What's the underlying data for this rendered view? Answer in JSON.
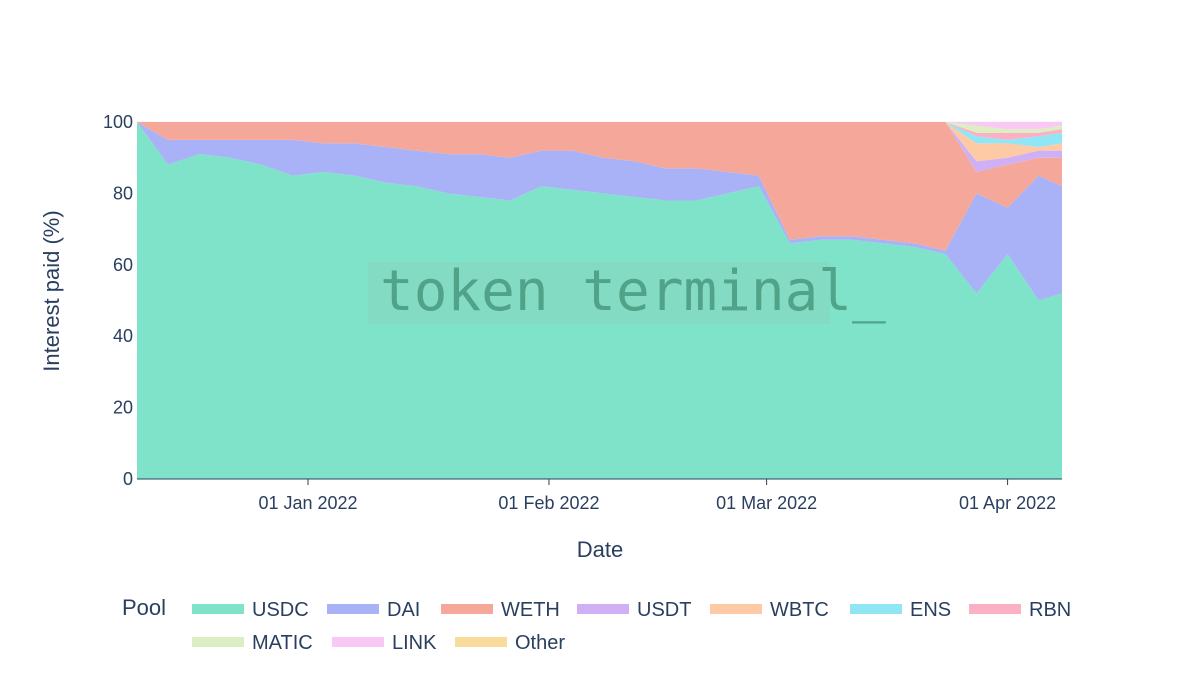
{
  "watermark": "token terminal_",
  "chart_data": {
    "type": "area",
    "stacked": true,
    "normalized_percent": true,
    "title": "",
    "xlabel": "Date",
    "ylabel": "Interest paid (%)",
    "ylim": [
      0,
      100
    ],
    "yticks": [
      0,
      20,
      40,
      60,
      80,
      100
    ],
    "xlim": [
      "2021-12-10",
      "2022-04-08"
    ],
    "xticks": [
      {
        "date": "2022-01-01",
        "label": "01 Jan 2022"
      },
      {
        "date": "2022-02-01",
        "label": "01 Feb 2022"
      },
      {
        "date": "2022-03-01",
        "label": "01 Mar 2022"
      },
      {
        "date": "2022-04-01",
        "label": "01 Apr 2022"
      }
    ],
    "grid": true,
    "legend_title": "Pool",
    "legend_position": "bottom",
    "colors": {
      "USDC": "#7ee3c8",
      "DAI": "#a9b2f7",
      "WETH": "#f5a899",
      "USDT": "#cfb0f5",
      "WBTC": "#fdcaa5",
      "ENS": "#90e6f5",
      "RBN": "#fbb0c4",
      "MATIC": "#dcefc2",
      "LINK": "#f9c8f4",
      "Other": "#f9dc9c"
    },
    "x": [
      "2021-12-10",
      "2021-12-14",
      "2021-12-18",
      "2021-12-22",
      "2021-12-26",
      "2021-12-30",
      "2022-01-03",
      "2022-01-07",
      "2022-01-11",
      "2022-01-15",
      "2022-01-19",
      "2022-01-23",
      "2022-01-27",
      "2022-01-31",
      "2022-02-04",
      "2022-02-08",
      "2022-02-12",
      "2022-02-16",
      "2022-02-20",
      "2022-02-24",
      "2022-02-28",
      "2022-03-04",
      "2022-03-08",
      "2022-03-12",
      "2022-03-16",
      "2022-03-20",
      "2022-03-24",
      "2022-03-28",
      "2022-04-01",
      "2022-04-05",
      "2022-04-08"
    ],
    "series": [
      {
        "name": "USDC",
        "values": [
          100,
          88,
          91,
          90,
          88,
          85,
          86,
          85,
          83,
          82,
          80,
          79,
          78,
          82,
          81,
          80,
          79,
          78,
          78,
          80,
          82,
          66,
          67,
          67,
          66,
          65,
          63,
          52,
          63,
          50,
          52
        ]
      },
      {
        "name": "DAI",
        "values": [
          0,
          7,
          4,
          5,
          7,
          10,
          8,
          9,
          10,
          10,
          11,
          12,
          12,
          10,
          11,
          10,
          10,
          9,
          9,
          6,
          3,
          1,
          1,
          1,
          1,
          1,
          1,
          28,
          13,
          35,
          30
        ]
      },
      {
        "name": "WETH",
        "values": [
          0,
          5,
          5,
          5,
          5,
          5,
          6,
          6,
          7,
          8,
          9,
          9,
          10,
          8,
          8,
          10,
          11,
          13,
          13,
          14,
          15,
          33,
          32,
          32,
          33,
          34,
          36,
          6,
          12,
          5,
          8
        ]
      },
      {
        "name": "USDT",
        "values": [
          0,
          0,
          0,
          0,
          0,
          0,
          0,
          0,
          0,
          0,
          0,
          0,
          0,
          0,
          0,
          0,
          0,
          0,
          0,
          0,
          0,
          0,
          0,
          0,
          0,
          0,
          0,
          3,
          2,
          2,
          2
        ]
      },
      {
        "name": "WBTC",
        "values": [
          0,
          0,
          0,
          0,
          0,
          0,
          0,
          0,
          0,
          0,
          0,
          0,
          0,
          0,
          0,
          0,
          0,
          0,
          0,
          0,
          0,
          0,
          0,
          0,
          0,
          0,
          0,
          5,
          4,
          1,
          2
        ]
      },
      {
        "name": "ENS",
        "values": [
          0,
          0,
          0,
          0,
          0,
          0,
          0,
          0,
          0,
          0,
          0,
          0,
          0,
          0,
          0,
          0,
          0,
          0,
          0,
          0,
          0,
          0,
          0,
          0,
          0,
          0,
          0,
          2,
          1,
          3,
          3
        ]
      },
      {
        "name": "RBN",
        "values": [
          0,
          0,
          0,
          0,
          0,
          0,
          0,
          0,
          0,
          0,
          0,
          0,
          0,
          0,
          0,
          0,
          0,
          0,
          0,
          0,
          0,
          0,
          0,
          0,
          0,
          0,
          0,
          1,
          2,
          1,
          1
        ]
      },
      {
        "name": "MATIC",
        "values": [
          0,
          0,
          0,
          0,
          0,
          0,
          0,
          0,
          0,
          0,
          0,
          0,
          0,
          0,
          0,
          0,
          0,
          0,
          0,
          0,
          0,
          0,
          0,
          0,
          0,
          0,
          0,
          2,
          1,
          1,
          1
        ]
      },
      {
        "name": "LINK",
        "values": [
          0,
          0,
          0,
          0,
          0,
          0,
          0,
          0,
          0,
          0,
          0,
          0,
          0,
          0,
          0,
          0,
          0,
          0,
          0,
          0,
          0,
          0,
          0,
          0,
          0,
          0,
          0,
          1,
          2,
          2,
          1
        ]
      },
      {
        "name": "Other",
        "values": [
          0,
          0,
          0,
          0,
          0,
          0,
          0,
          0,
          0,
          0,
          0,
          0,
          0,
          0,
          0,
          0,
          0,
          0,
          0,
          0,
          0,
          0,
          0,
          0,
          0,
          0,
          0,
          0,
          0,
          0,
          0
        ]
      }
    ]
  }
}
